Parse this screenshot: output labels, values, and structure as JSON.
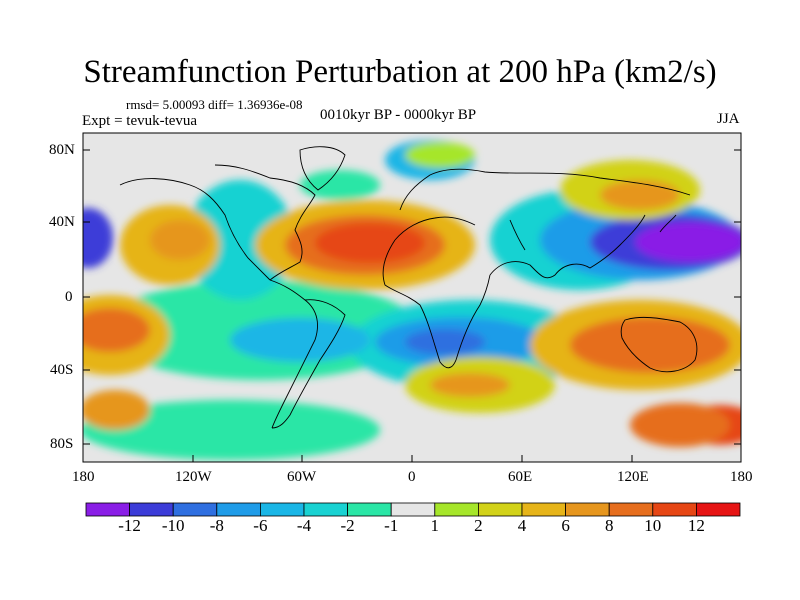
{
  "title": "Streamfunction Perturbation at 200 hPa (km2/s)",
  "stats": "rmsd= 5.00093 diff= 1.36936e-08",
  "experiment": "Expt = tevuk-tevua",
  "period": "0010kyr BP - 0000kyr BP",
  "season": "JJA",
  "axes": {
    "lat_labels": [
      "80N",
      "40N",
      "0",
      "40S",
      "80S"
    ],
    "lon_labels": [
      "180",
      "120W",
      "60W",
      "0",
      "60E",
      "120E",
      "180"
    ]
  },
  "colorbar": {
    "labels": [
      "-12",
      "-10",
      "-8",
      "-6",
      "-4",
      "-2",
      "-1",
      "1",
      "2",
      "4",
      "6",
      "8",
      "10",
      "12"
    ],
    "colors": [
      "#8a1ee6",
      "#3c3cd8",
      "#2f6fe0",
      "#1f9ce8",
      "#1ab6e6",
      "#19d2d2",
      "#2ae6a6",
      "#e6e6e6",
      "#a6e62a",
      "#d2d219",
      "#e6b419",
      "#e6961e",
      "#e66e1e",
      "#e64614",
      "#e61414"
    ]
  }
}
